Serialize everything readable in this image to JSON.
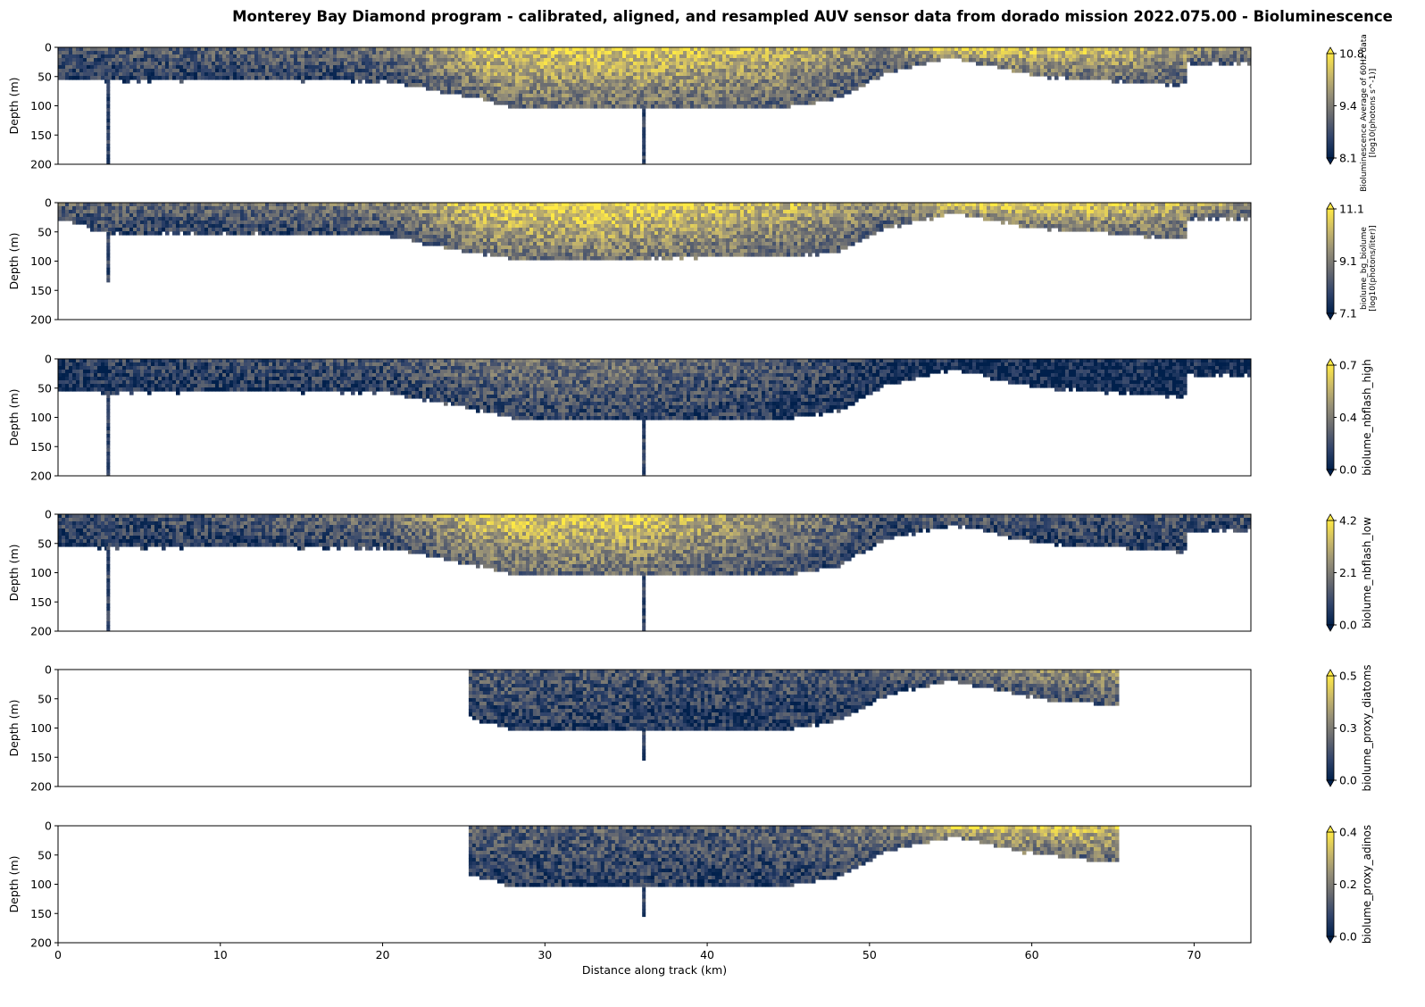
{
  "title": "Monterey Bay Diamond program - calibrated, aligned, and resampled AUV sensor data from dorado mission 2022.075.00 - Bioluminescence",
  "colors": {
    "cmap": [
      "#00204c",
      "#31446b",
      "#666970",
      "#958f78",
      "#cbba69",
      "#ffe945"
    ],
    "axis": "#000000"
  },
  "chart_data": [
    {
      "type": "heatmap",
      "variable": "bioluminescence_avg_60hz",
      "ylabel": "Depth (m)",
      "xlim": [
        0,
        73.5
      ],
      "ylim": [
        200,
        0
      ],
      "yticks": [
        "0",
        "50",
        "100",
        "150",
        "200"
      ],
      "colorbar": {
        "label_lines": [
          "Bioluminescence Average of 60Hz data",
          "[log10(photons s^-1)]"
        ],
        "ticks": [
          "8.1",
          "9.4",
          "10.8"
        ]
      },
      "bottom_profile_km": [
        0,
        3,
        3.2,
        10,
        20,
        25,
        28,
        34,
        40,
        45,
        48,
        51,
        55,
        60,
        65,
        69.3,
        69.5,
        73.5
      ],
      "bottom_profile_depth_m": [
        50,
        55,
        55,
        52,
        55,
        80,
        100,
        100,
        100,
        100,
        85,
        40,
        15,
        45,
        55,
        62,
        25,
        25
      ],
      "dips": [
        {
          "km": 3.1,
          "depth_m": 200
        },
        {
          "km": 36.1,
          "depth_m": 200
        }
      ],
      "intensity_profile": [
        [
          0,
          0.3
        ],
        [
          10,
          0.35
        ],
        [
          20,
          0.45
        ],
        [
          26,
          0.85
        ],
        [
          35,
          0.9
        ],
        [
          45,
          0.75
        ],
        [
          51,
          0.55
        ],
        [
          55,
          0.9
        ],
        [
          65,
          0.8
        ],
        [
          73.5,
          0.5
        ]
      ]
    },
    {
      "type": "heatmap",
      "variable": "biolume_bg_biolume",
      "ylabel": "Depth (m)",
      "xlim": [
        0,
        73.5
      ],
      "ylim": [
        200,
        0
      ],
      "yticks": [
        "0",
        "50",
        "100",
        "150",
        "200"
      ],
      "colorbar": {
        "label_lines": [
          "biolume_bg_biolume",
          "[log10(photons/liter)]"
        ],
        "ticks": [
          "7.1",
          "9.1",
          "11.1"
        ]
      },
      "bottom_profile_km": [
        0,
        3,
        10,
        20,
        25,
        28,
        34,
        40,
        45,
        48,
        51,
        55,
        60,
        65,
        69.3,
        69.5,
        73.5
      ],
      "bottom_profile_depth_m": [
        25,
        50,
        50,
        52,
        80,
        95,
        95,
        90,
        90,
        80,
        40,
        15,
        40,
        50,
        60,
        25,
        25
      ],
      "dips": [
        {
          "km": 3.1,
          "depth_m": 135
        }
      ],
      "intensity_profile": [
        [
          0,
          0.4
        ],
        [
          10,
          0.4
        ],
        [
          20,
          0.5
        ],
        [
          26,
          0.9
        ],
        [
          35,
          0.95
        ],
        [
          45,
          0.8
        ],
        [
          51,
          0.6
        ],
        [
          55,
          0.95
        ],
        [
          65,
          0.85
        ],
        [
          73.5,
          0.6
        ]
      ]
    },
    {
      "type": "heatmap",
      "variable": "biolume_nbflash_high",
      "ylabel": "Depth (m)",
      "xlim": [
        0,
        73.5
      ],
      "ylim": [
        200,
        0
      ],
      "yticks": [
        "0",
        "50",
        "100",
        "150",
        "200"
      ],
      "colorbar": {
        "label_lines": [
          "biolume_nbflash_high"
        ],
        "ticks": [
          "0.0",
          "0.4",
          "0.7"
        ]
      },
      "bottom_profile_km": [
        0,
        3,
        3.2,
        10,
        20,
        25,
        28,
        34,
        40,
        45,
        48,
        51,
        55,
        60,
        65,
        69.3,
        69.5,
        73.5
      ],
      "bottom_profile_depth_m": [
        50,
        55,
        55,
        52,
        55,
        80,
        100,
        100,
        100,
        100,
        85,
        40,
        15,
        45,
        55,
        62,
        25,
        25
      ],
      "dips": [
        {
          "km": 3.1,
          "depth_m": 200
        },
        {
          "km": 36.1,
          "depth_m": 200
        }
      ],
      "intensity_profile": [
        [
          0,
          0.15
        ],
        [
          10,
          0.25
        ],
        [
          20,
          0.3
        ],
        [
          26,
          0.45
        ],
        [
          35,
          0.45
        ],
        [
          45,
          0.3
        ],
        [
          51,
          0.15
        ],
        [
          55,
          0.1
        ],
        [
          65,
          0.1
        ],
        [
          73.5,
          0.05
        ]
      ]
    },
    {
      "type": "heatmap",
      "variable": "biolume_nbflash_low",
      "ylabel": "Depth (m)",
      "xlim": [
        0,
        73.5
      ],
      "ylim": [
        200,
        0
      ],
      "yticks": [
        "0",
        "50",
        "100",
        "150",
        "200"
      ],
      "colorbar": {
        "label_lines": [
          "biolume_nbflash_low"
        ],
        "ticks": [
          "0.0",
          "2.1",
          "4.2"
        ]
      },
      "bottom_profile_km": [
        0,
        3,
        3.2,
        10,
        20,
        25,
        28,
        34,
        40,
        45,
        48,
        51,
        55,
        60,
        65,
        69.3,
        69.5,
        73.5
      ],
      "bottom_profile_depth_m": [
        50,
        55,
        55,
        52,
        55,
        80,
        100,
        100,
        100,
        100,
        85,
        40,
        15,
        45,
        55,
        62,
        25,
        25
      ],
      "dips": [
        {
          "km": 3.1,
          "depth_m": 200
        },
        {
          "km": 36.1,
          "depth_m": 200
        }
      ],
      "intensity_profile": [
        [
          0,
          0.25
        ],
        [
          10,
          0.3
        ],
        [
          20,
          0.45
        ],
        [
          26,
          0.85
        ],
        [
          35,
          0.9
        ],
        [
          45,
          0.55
        ],
        [
          51,
          0.3
        ],
        [
          55,
          0.35
        ],
        [
          65,
          0.3
        ],
        [
          73.5,
          0.3
        ]
      ]
    },
    {
      "type": "heatmap",
      "variable": "biolume_proxy_diatoms",
      "ylabel": "Depth (m)",
      "xlim": [
        0,
        73.5
      ],
      "ylim": [
        200,
        0
      ],
      "yticks": [
        "0",
        "50",
        "100",
        "150",
        "200"
      ],
      "colorbar": {
        "label_lines": [
          "biolume_proxy_diatoms"
        ],
        "ticks": [
          "0.0",
          "0.3",
          "0.5"
        ]
      },
      "data_start_km": 25.3,
      "data_end_km": 65.3,
      "bottom_profile_km": [
        25.3,
        28,
        34,
        40,
        45,
        48,
        51,
        55,
        60,
        65.3
      ],
      "bottom_profile_depth_m": [
        80,
        100,
        100,
        100,
        100,
        85,
        40,
        15,
        45,
        60
      ],
      "dips": [
        {
          "km": 36.1,
          "depth_m": 150
        }
      ],
      "intensity_profile": [
        [
          25.3,
          0.35
        ],
        [
          35,
          0.3
        ],
        [
          45,
          0.3
        ],
        [
          51,
          0.3
        ],
        [
          55,
          0.45
        ],
        [
          60,
          0.55
        ],
        [
          65.3,
          0.65
        ]
      ]
    },
    {
      "type": "heatmap",
      "variable": "biolume_proxy_adinos",
      "ylabel": "Depth (m)",
      "xlabel": "Distance along track (km)",
      "xlim": [
        0,
        73.5
      ],
      "ylim": [
        200,
        0
      ],
      "xticks": [
        "0",
        "10",
        "20",
        "30",
        "40",
        "50",
        "60",
        "70"
      ],
      "yticks": [
        "0",
        "50",
        "100",
        "150",
        "200"
      ],
      "colorbar": {
        "label_lines": [
          "biolume_proxy_adinos"
        ],
        "ticks": [
          "0.0",
          "0.2",
          "0.4"
        ]
      },
      "data_start_km": 25.3,
      "data_end_km": 65.3,
      "bottom_profile_km": [
        25.3,
        28,
        34,
        40,
        45,
        48,
        51,
        55,
        60,
        65.3
      ],
      "bottom_profile_depth_m": [
        80,
        100,
        100,
        100,
        100,
        85,
        40,
        15,
        45,
        60
      ],
      "dips": [
        {
          "km": 36.1,
          "depth_m": 150
        }
      ],
      "intensity_profile": [
        [
          25.3,
          0.35
        ],
        [
          35,
          0.35
        ],
        [
          45,
          0.35
        ],
        [
          51,
          0.55
        ],
        [
          55,
          0.9
        ],
        [
          60,
          0.85
        ],
        [
          65.3,
          0.8
        ]
      ]
    }
  ]
}
